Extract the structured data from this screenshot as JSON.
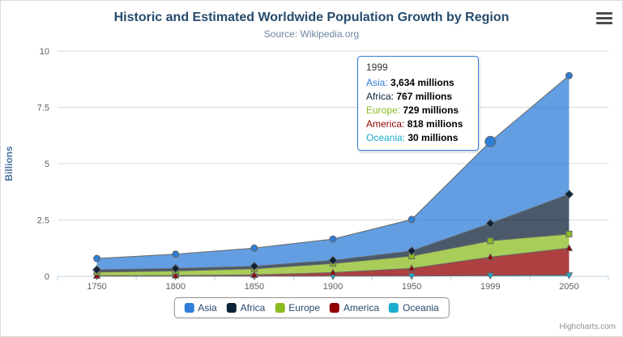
{
  "chart_data": {
    "type": "area",
    "stacking": "normal",
    "title": "Historic and Estimated Worldwide Population Growth by Region",
    "subtitle": "Source: Wikipedia.org",
    "categories": [
      "1750",
      "1800",
      "1850",
      "1900",
      "1950",
      "1999",
      "2050"
    ],
    "xlabel": "",
    "ylabel": "Billions",
    "ylim": [
      0,
      10
    ],
    "yticks": [
      0,
      2.5,
      5,
      7.5,
      10
    ],
    "ytick_labels": [
      "0",
      "2.5",
      "5",
      "7.5",
      "10"
    ],
    "values_unit": "millions",
    "axis_unit": "billions",
    "grid": true,
    "legend_position": "bottom",
    "line_color": "#666666",
    "series": [
      {
        "name": "Asia",
        "color": "#2f7ed8",
        "marker": "circle",
        "values": [
          502,
          635,
          809,
          947,
          1402,
          3634,
          5268
        ]
      },
      {
        "name": "Africa",
        "color": "#0d233a",
        "marker": "diamond",
        "values": [
          106,
          107,
          111,
          133,
          221,
          767,
          1766
        ]
      },
      {
        "name": "Europe",
        "color": "#8bbc21",
        "marker": "square",
        "values": [
          163,
          203,
          276,
          408,
          547,
          729,
          628
        ]
      },
      {
        "name": "America",
        "color": "#910000",
        "marker": "triangle",
        "values": [
          18,
          31,
          54,
          156,
          339,
          818,
          1201
        ]
      },
      {
        "name": "Oceania",
        "color": "#1aadce",
        "marker": "triangle-down",
        "values": [
          2,
          2,
          2,
          6,
          13,
          30,
          46
        ]
      }
    ]
  },
  "tooltip": {
    "header": "1999",
    "hover_series": "Asia",
    "hover_category_index": 5,
    "rows": [
      {
        "name": "Asia",
        "value": "3,634",
        "unit": "millions"
      },
      {
        "name": "Africa",
        "value": "767",
        "unit": "millions"
      },
      {
        "name": "Europe",
        "value": "729",
        "unit": "millions"
      },
      {
        "name": "America",
        "value": "818",
        "unit": "millions"
      },
      {
        "name": "Oceania",
        "value": "30",
        "unit": "millions"
      }
    ]
  },
  "credit": "Highcharts.com"
}
